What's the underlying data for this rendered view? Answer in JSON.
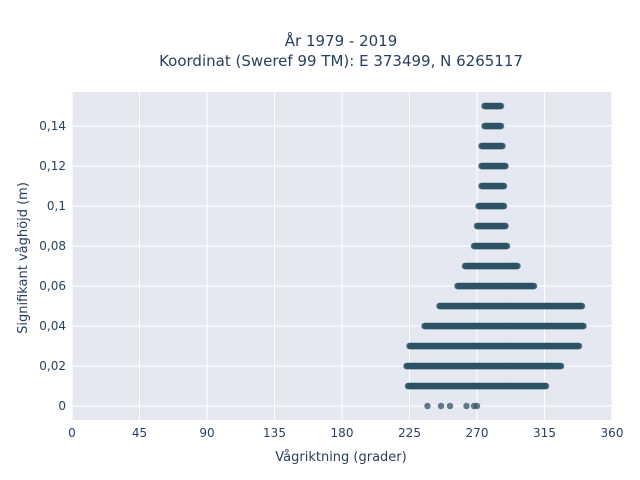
{
  "chart_data": {
    "type": "scatter",
    "title_lines": [
      "År 1979 - 2019",
      "Koordinat (Sweref 99 TM): E 373499, N 6265117"
    ],
    "xlabel": "Vågriktning (grader)",
    "ylabel": "Signifikant våghöjd (m)",
    "xlim": [
      0,
      360
    ],
    "ylim": [
      -0.007,
      0.157
    ],
    "xticks": [
      0,
      45,
      90,
      135,
      180,
      225,
      270,
      315,
      360
    ],
    "yticks": [
      0,
      0.02,
      0.04,
      0.06,
      0.08,
      0.1,
      0.12,
      0.14
    ],
    "ytick_labels": [
      "0",
      "0,02",
      "0,04",
      "0,06",
      "0,08",
      "0,1",
      "0,12",
      "0,14"
    ],
    "grid": true,
    "marker_color": "#2e5266",
    "plot_background": "#e5e8f0",
    "bands": [
      {
        "y": 0.0,
        "x_points": [
          237,
          246,
          252,
          263,
          268,
          270
        ]
      },
      {
        "y": 0.01,
        "x_min": 224,
        "x_max": 316
      },
      {
        "y": 0.02,
        "x_min": 223,
        "x_max": 326
      },
      {
        "y": 0.03,
        "x_min": 225,
        "x_max": 338
      },
      {
        "y": 0.04,
        "x_min": 235,
        "x_max": 341
      },
      {
        "y": 0.05,
        "x_min": 245,
        "x_max": 340
      },
      {
        "y": 0.06,
        "x_min": 257,
        "x_max": 308
      },
      {
        "y": 0.07,
        "x_min": 262,
        "x_max": 297
      },
      {
        "y": 0.08,
        "x_min": 268,
        "x_max": 290
      },
      {
        "y": 0.09,
        "x_min": 270,
        "x_max": 289
      },
      {
        "y": 0.1,
        "x_min": 271,
        "x_max": 288
      },
      {
        "y": 0.11,
        "x_min": 273,
        "x_max": 288
      },
      {
        "y": 0.12,
        "x_min": 273,
        "x_max": 289
      },
      {
        "y": 0.13,
        "x_min": 273,
        "x_max": 287
      },
      {
        "y": 0.14,
        "x_min": 275,
        "x_max": 286
      },
      {
        "y": 0.15,
        "x_min": 275,
        "x_max": 286
      }
    ]
  }
}
